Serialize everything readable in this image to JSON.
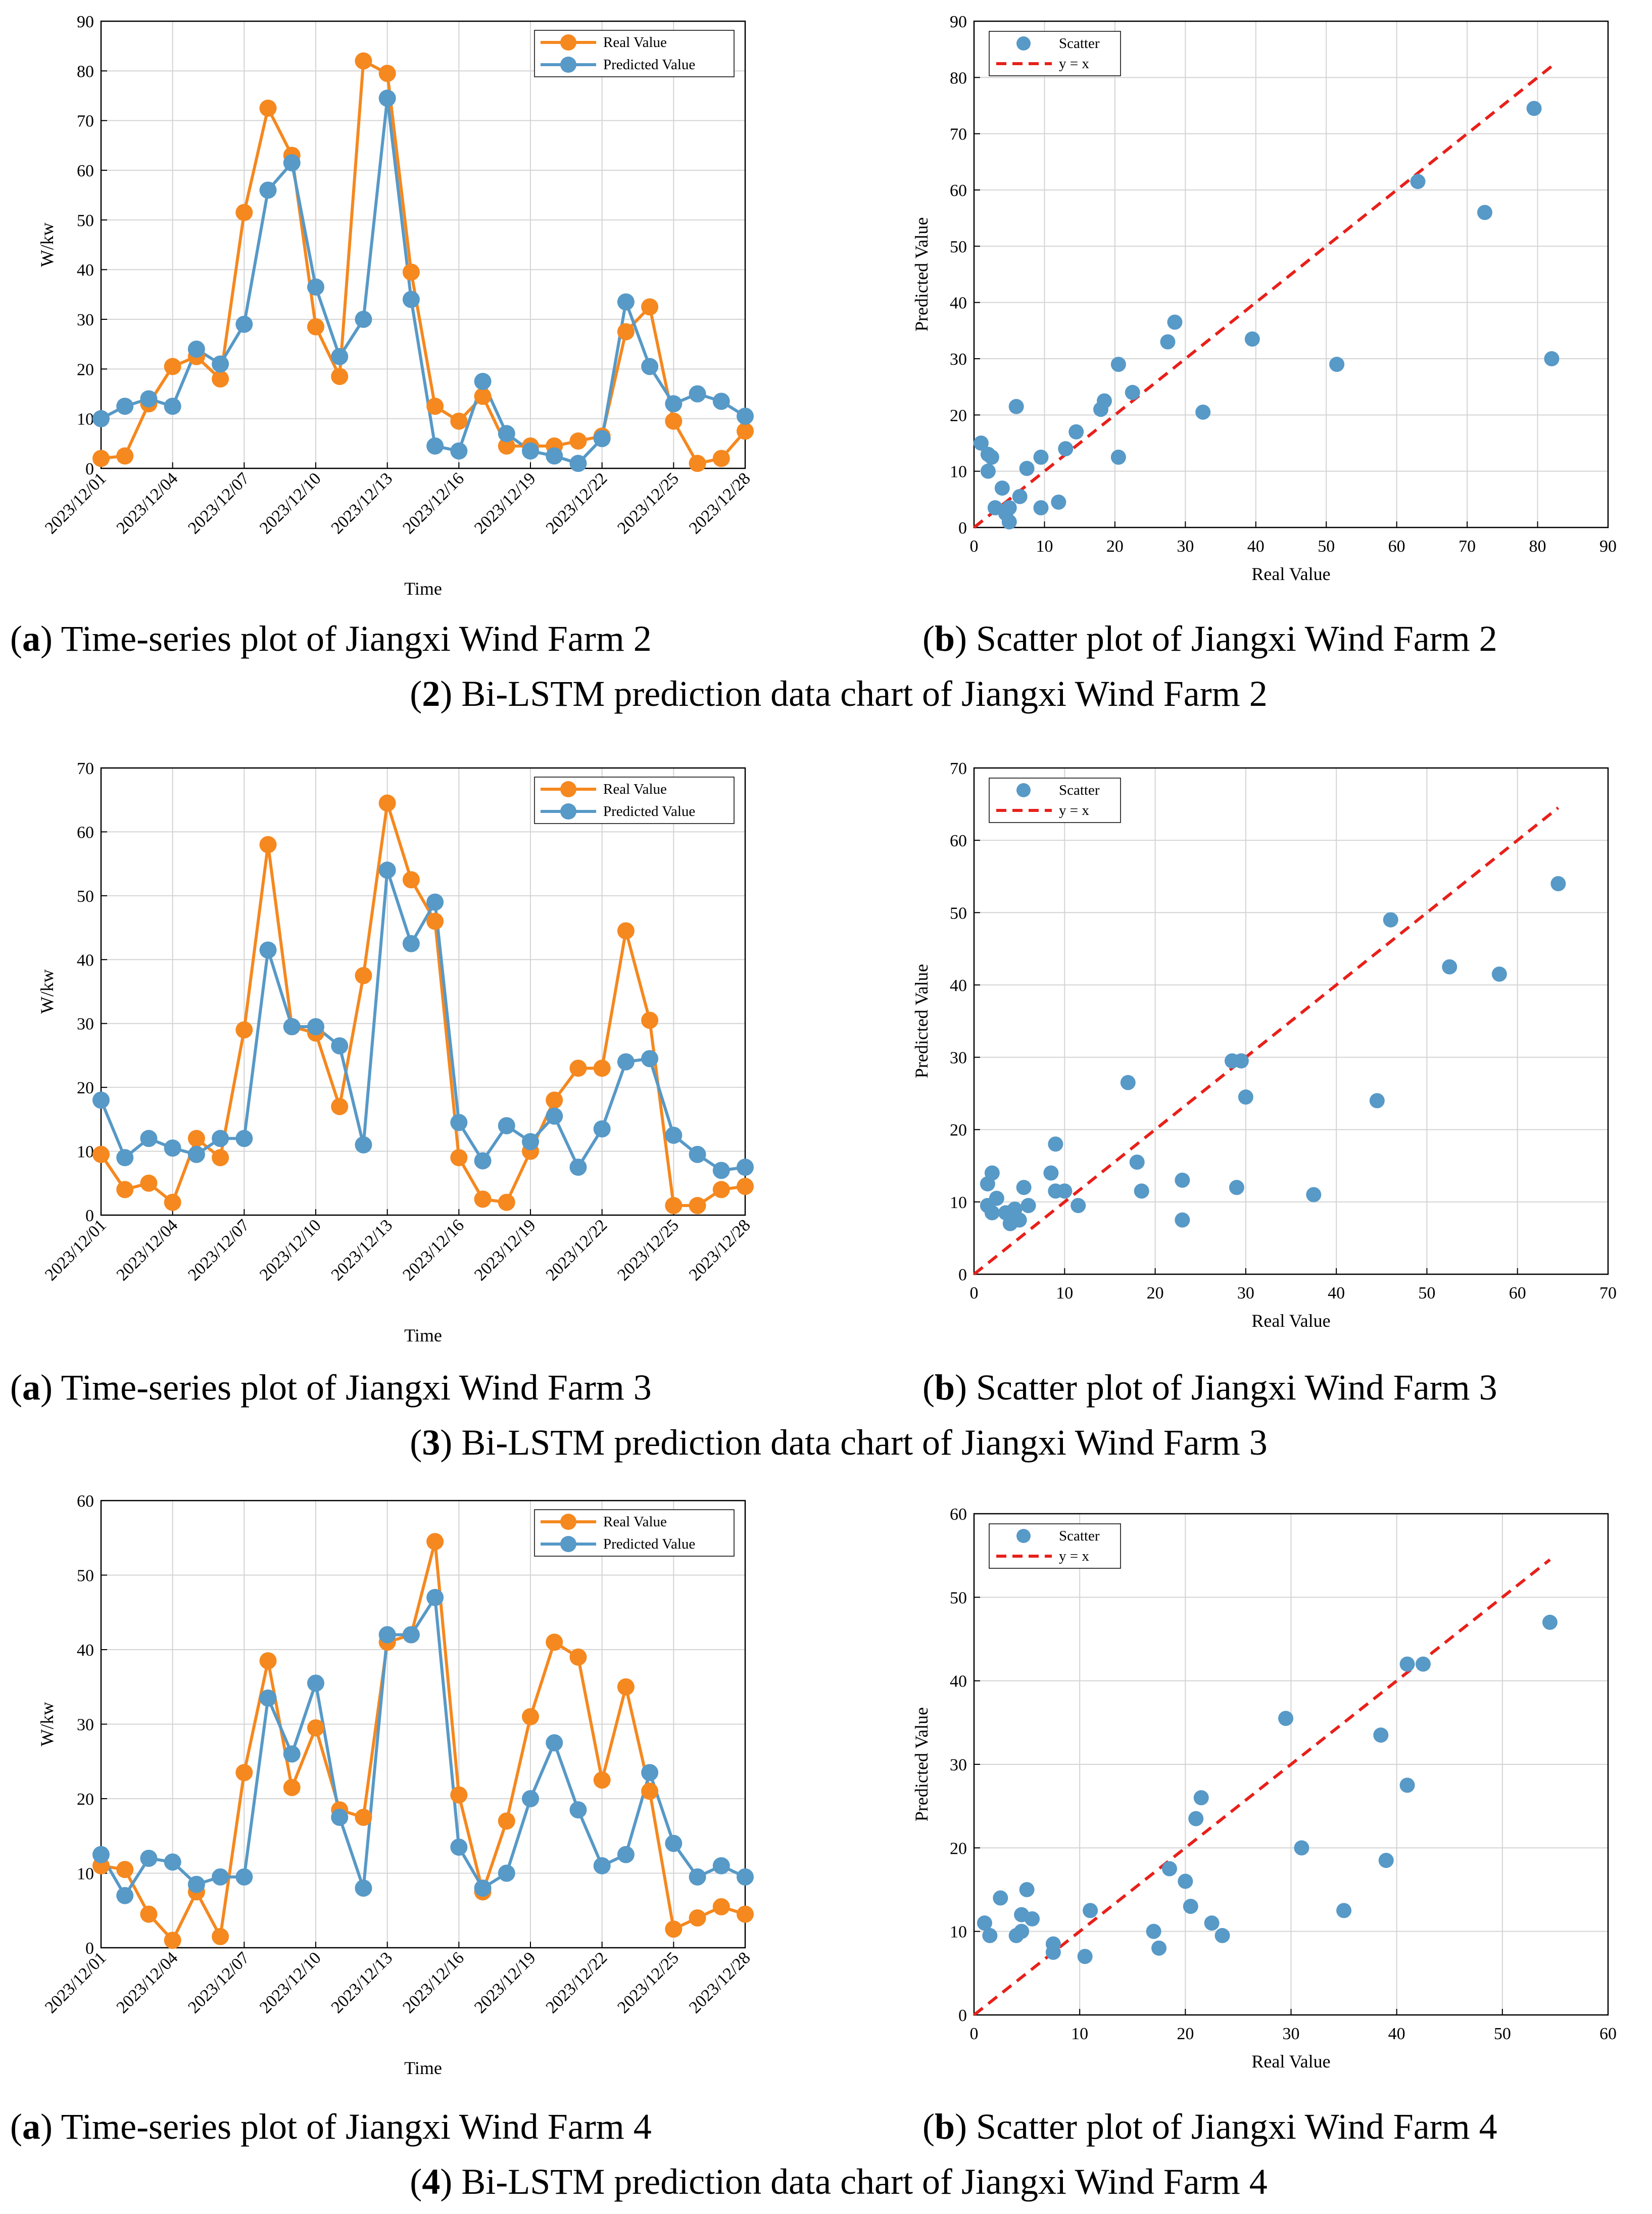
{
  "colors": {
    "real": "#f5881f",
    "pred": "#5799c7",
    "diag": "#e8201a"
  },
  "chart_data": [
    {
      "id": "ts2",
      "type": "line",
      "xlabel": "Time",
      "ylabel": "W/kw",
      "ylim": [
        0,
        90
      ],
      "yticks": [
        0,
        10,
        20,
        30,
        40,
        50,
        60,
        70,
        80,
        90
      ],
      "xticks": [
        "2023/12/01",
        "2023/12/04",
        "2023/12/07",
        "2023/12/10",
        "2023/12/13",
        "2023/12/16",
        "2023/12/19",
        "2023/12/22",
        "2023/12/25",
        "2023/12/28"
      ],
      "grid": true,
      "legend_position": "top-right",
      "series": [
        {
          "name": "Real Value",
          "values": [
            2,
            2.5,
            13,
            20.5,
            22.5,
            18,
            51.5,
            72.5,
            63,
            28.5,
            18.5,
            82,
            79.5,
            39.5,
            12.5,
            9.5,
            14.5,
            4.5,
            4.5,
            4.5,
            5.5,
            6.5,
            27.5,
            32.5,
            9.5,
            1,
            2,
            7.5
          ]
        },
        {
          "name": "Predicted Value",
          "values": [
            10,
            12.5,
            14,
            12.5,
            24,
            21,
            29,
            56,
            61.5,
            36.5,
            22.5,
            30,
            74.5,
            34,
            4.5,
            3.5,
            17.5,
            7,
            3.5,
            2.5,
            1,
            6,
            33.5,
            20.5,
            13,
            15,
            13.5,
            10.5
          ]
        }
      ]
    },
    {
      "id": "sc2",
      "type": "scatter",
      "xlabel": "Real Value",
      "ylabel": "Predicted Value",
      "xlim": [
        0,
        90
      ],
      "ylim": [
        0,
        90
      ],
      "xticks": [
        0,
        10,
        20,
        30,
        40,
        50,
        60,
        70,
        80,
        90
      ],
      "yticks": [
        0,
        10,
        20,
        30,
        40,
        50,
        60,
        70,
        80,
        90
      ],
      "grid": true,
      "legend_position": "top-left",
      "legend": [
        "Scatter",
        "y = x"
      ],
      "points": [
        [
          1,
          15
        ],
        [
          2,
          13
        ],
        [
          2.5,
          12.5
        ],
        [
          2,
          10
        ],
        [
          3,
          3.5
        ],
        [
          4,
          7
        ],
        [
          4.5,
          2.5
        ],
        [
          5,
          1
        ],
        [
          5,
          3.5
        ],
        [
          6,
          21.5
        ],
        [
          6.5,
          5.5
        ],
        [
          7.5,
          10.5
        ],
        [
          9.5,
          3.5
        ],
        [
          9.5,
          12.5
        ],
        [
          12,
          4.5
        ],
        [
          13,
          14
        ],
        [
          14.5,
          17
        ],
        [
          18,
          21
        ],
        [
          18.5,
          22.5
        ],
        [
          20.5,
          12.5
        ],
        [
          20.5,
          29
        ],
        [
          22.5,
          24
        ],
        [
          27.5,
          33
        ],
        [
          28.5,
          36.5
        ],
        [
          32.5,
          20.5
        ],
        [
          39.5,
          33.5
        ],
        [
          51.5,
          29
        ],
        [
          63,
          61.5
        ],
        [
          72.5,
          56
        ],
        [
          79.5,
          74.5
        ],
        [
          82,
          30
        ]
      ],
      "diag_max": 82
    },
    {
      "id": "ts3",
      "type": "line",
      "xlabel": "Time",
      "ylabel": "W/kw",
      "ylim": [
        0,
        70
      ],
      "yticks": [
        0,
        10,
        20,
        30,
        40,
        50,
        60,
        70
      ],
      "xticks": [
        "2023/12/01",
        "2023/12/04",
        "2023/12/07",
        "2023/12/10",
        "2023/12/13",
        "2023/12/16",
        "2023/12/19",
        "2023/12/22",
        "2023/12/25",
        "2023/12/28"
      ],
      "grid": true,
      "legend_position": "top-right",
      "series": [
        {
          "name": "Real Value",
          "values": [
            9.5,
            4,
            5,
            2,
            12,
            9,
            29,
            58,
            29.5,
            28.5,
            17,
            37.5,
            64.5,
            52.5,
            46,
            9,
            2.5,
            2,
            10,
            18,
            23,
            23,
            44.5,
            30.5,
            1.5,
            1.5,
            4,
            4.5
          ]
        },
        {
          "name": "Predicted Value",
          "values": [
            18,
            9,
            12,
            10.5,
            9.5,
            12,
            12,
            41.5,
            29.5,
            29.5,
            26.5,
            11,
            54,
            42.5,
            49,
            14.5,
            8.5,
            14,
            11.5,
            15.5,
            7.5,
            13.5,
            24,
            24.5,
            12.5,
            9.5,
            7,
            7.5
          ]
        }
      ]
    },
    {
      "id": "sc3",
      "type": "scatter",
      "xlabel": "Real Value",
      "ylabel": "Predicted Value",
      "xlim": [
        0,
        70
      ],
      "ylim": [
        0,
        70
      ],
      "xticks": [
        0,
        10,
        20,
        30,
        40,
        50,
        60,
        70
      ],
      "yticks": [
        0,
        10,
        20,
        30,
        40,
        50,
        60,
        70
      ],
      "grid": true,
      "legend_position": "top-left",
      "legend": [
        "Scatter",
        "y = x"
      ],
      "points": [
        [
          1.5,
          12.5
        ],
        [
          1.5,
          9.5
        ],
        [
          2,
          14
        ],
        [
          2.5,
          10.5
        ],
        [
          2,
          8.5
        ],
        [
          3.5,
          8.5
        ],
        [
          4,
          7
        ],
        [
          4.5,
          9
        ],
        [
          5,
          7.5
        ],
        [
          5.5,
          12
        ],
        [
          6,
          9.5
        ],
        [
          8.5,
          14
        ],
        [
          9,
          18
        ],
        [
          9,
          11.5
        ],
        [
          10,
          11.5
        ],
        [
          11.5,
          9.5
        ],
        [
          17,
          26.5
        ],
        [
          18,
          15.5
        ],
        [
          18.5,
          11.5
        ],
        [
          23,
          7.5
        ],
        [
          23,
          13
        ],
        [
          28.5,
          29.5
        ],
        [
          29.5,
          29.5
        ],
        [
          29,
          12
        ],
        [
          30,
          24.5
        ],
        [
          37.5,
          11
        ],
        [
          44.5,
          24
        ],
        [
          46,
          49
        ],
        [
          52.5,
          42.5
        ],
        [
          58,
          41.5
        ],
        [
          64.5,
          54
        ]
      ],
      "diag_max": 64.5
    },
    {
      "id": "ts4",
      "type": "line",
      "xlabel": "Time",
      "ylabel": "W/kw",
      "ylim": [
        0,
        60
      ],
      "yticks": [
        0,
        10,
        20,
        30,
        40,
        50,
        60
      ],
      "xticks": [
        "2023/12/01",
        "2023/12/04",
        "2023/12/07",
        "2023/12/10",
        "2023/12/13",
        "2023/12/16",
        "2023/12/19",
        "2023/12/22",
        "2023/12/25",
        "2023/12/28"
      ],
      "grid": true,
      "legend_position": "top-right",
      "series": [
        {
          "name": "Real Value",
          "values": [
            11,
            10.5,
            4.5,
            1,
            7.5,
            1.5,
            23.5,
            38.5,
            21.5,
            29.5,
            18.5,
            17.5,
            41,
            42,
            54.5,
            20.5,
            7.5,
            17,
            31,
            41,
            39,
            22.5,
            35,
            21,
            2.5,
            4,
            5.5,
            4.5
          ]
        },
        {
          "name": "Predicted Value",
          "values": [
            12.5,
            7,
            12,
            11.5,
            8.5,
            9.5,
            9.5,
            33.5,
            26,
            35.5,
            17.5,
            8,
            42,
            42,
            47,
            13.5,
            8,
            10,
            20,
            27.5,
            18.5,
            11,
            12.5,
            23.5,
            14,
            9.5,
            11,
            9.5
          ]
        }
      ]
    },
    {
      "id": "sc4",
      "type": "scatter",
      "xlabel": "Real Value",
      "ylabel": "Predicted Value",
      "xlim": [
        0,
        60
      ],
      "ylim": [
        0,
        60
      ],
      "xticks": [
        0,
        10,
        20,
        30,
        40,
        50,
        60
      ],
      "yticks": [
        0,
        10,
        20,
        30,
        40,
        50,
        60
      ],
      "grid": true,
      "legend_position": "top-left",
      "legend": [
        "Scatter",
        "y = x"
      ],
      "points": [
        [
          1,
          11
        ],
        [
          1.5,
          9.5
        ],
        [
          2.5,
          14
        ],
        [
          4,
          9.5
        ],
        [
          4.5,
          10
        ],
        [
          4.5,
          12
        ],
        [
          5,
          15
        ],
        [
          5.5,
          11.5
        ],
        [
          7.5,
          8.5
        ],
        [
          7.5,
          7.5
        ],
        [
          10.5,
          7
        ],
        [
          11,
          12.5
        ],
        [
          17,
          10
        ],
        [
          17.5,
          8
        ],
        [
          18.5,
          17.5
        ],
        [
          20,
          16
        ],
        [
          20.5,
          13
        ],
        [
          21,
          23.5
        ],
        [
          21.5,
          26
        ],
        [
          22.5,
          11
        ],
        [
          23.5,
          9.5
        ],
        [
          29.5,
          35.5
        ],
        [
          31,
          20
        ],
        [
          35,
          12.5
        ],
        [
          38.5,
          33.5
        ],
        [
          39,
          18.5
        ],
        [
          41,
          42
        ],
        [
          41,
          27.5
        ],
        [
          42.5,
          42
        ],
        [
          54.5,
          47
        ]
      ],
      "diag_max": 54.5
    }
  ],
  "captions": {
    "fig2_a_letter": "a",
    "fig2_a_text": " Time-series plot of Jiangxi Wind Farm 2",
    "fig2_b_letter": "b",
    "fig2_b_text": " Scatter plot of Jiangxi Wind Farm 2",
    "fig2_main_num": "2",
    "fig2_main_text": " Bi-LSTM prediction data chart of Jiangxi Wind Farm 2",
    "fig3_a_letter": "a",
    "fig3_a_text": " Time-series plot of Jiangxi Wind Farm 3",
    "fig3_b_letter": "b",
    "fig3_b_text": " Scatter plot of Jiangxi Wind Farm 3",
    "fig3_main_num": "3",
    "fig3_main_text": " Bi-LSTM prediction data chart of Jiangxi Wind Farm 3",
    "fig4_a_letter": "a",
    "fig4_a_text": " Time-series plot of Jiangxi Wind Farm 4",
    "fig4_b_letter": "b",
    "fig4_b_text": " Scatter plot of Jiangxi Wind Farm 4",
    "fig4_main_num": "4",
    "fig4_main_text": " Bi-LSTM prediction data chart of Jiangxi Wind Farm 4"
  }
}
